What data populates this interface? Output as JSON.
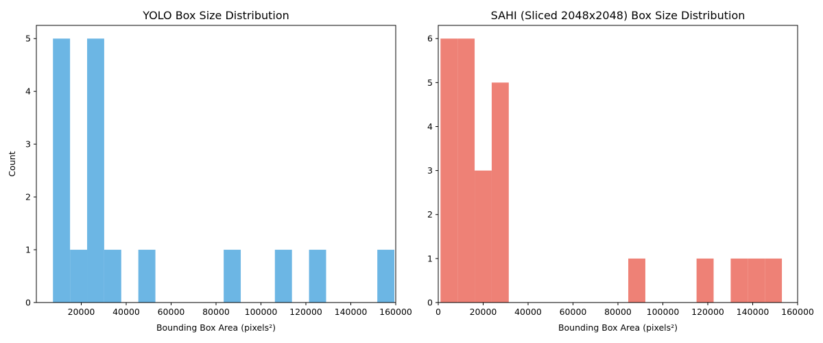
{
  "chart_data": [
    {
      "type": "bar",
      "title": "YOLO Box Size Distribution",
      "xlabel": "Bounding Box Area (pixels²)",
      "ylabel": "Count",
      "xlim": [
        0,
        160000
      ],
      "ylim": [
        0,
        5.25
      ],
      "xticks": [
        20000,
        40000,
        60000,
        80000,
        100000,
        120000,
        140000,
        160000
      ],
      "yticks": [
        0,
        1,
        2,
        3,
        4,
        5
      ],
      "color": "#6cb6e4",
      "grid": false,
      "bins": [
        {
          "x0": 7400,
          "x1": 15000,
          "count": 5
        },
        {
          "x0": 15000,
          "x1": 22600,
          "count": 1
        },
        {
          "x0": 22600,
          "x1": 30200,
          "count": 5
        },
        {
          "x0": 30200,
          "x1": 37800,
          "count": 1
        },
        {
          "x0": 45400,
          "x1": 53000,
          "count": 1
        },
        {
          "x0": 83400,
          "x1": 91000,
          "count": 1
        },
        {
          "x0": 106200,
          "x1": 113800,
          "count": 1
        },
        {
          "x0": 121400,
          "x1": 129000,
          "count": 1
        },
        {
          "x0": 151800,
          "x1": 159400,
          "count": 1
        }
      ]
    },
    {
      "type": "bar",
      "title": "SAHI (Sliced 2048x2048) Box Size Distribution",
      "xlabel": "Bounding Box Area (pixels²)",
      "ylabel": "",
      "xlim": [
        0,
        160000
      ],
      "ylim": [
        0,
        6.3
      ],
      "xticks": [
        0,
        20000,
        40000,
        60000,
        80000,
        100000,
        120000,
        140000,
        160000
      ],
      "yticks": [
        0,
        1,
        2,
        3,
        4,
        5,
        6
      ],
      "color": "#ee8176",
      "grid": false,
      "bins": [
        {
          "x0": 1000,
          "x1": 8600,
          "count": 6
        },
        {
          "x0": 8600,
          "x1": 16200,
          "count": 6
        },
        {
          "x0": 16200,
          "x1": 23800,
          "count": 3
        },
        {
          "x0": 23800,
          "x1": 31400,
          "count": 5
        },
        {
          "x0": 84600,
          "x1": 92200,
          "count": 1
        },
        {
          "x0": 115000,
          "x1": 122600,
          "count": 1
        },
        {
          "x0": 130200,
          "x1": 137800,
          "count": 1
        },
        {
          "x0": 137800,
          "x1": 145400,
          "count": 1
        },
        {
          "x0": 145400,
          "x1": 153000,
          "count": 1
        }
      ]
    }
  ]
}
